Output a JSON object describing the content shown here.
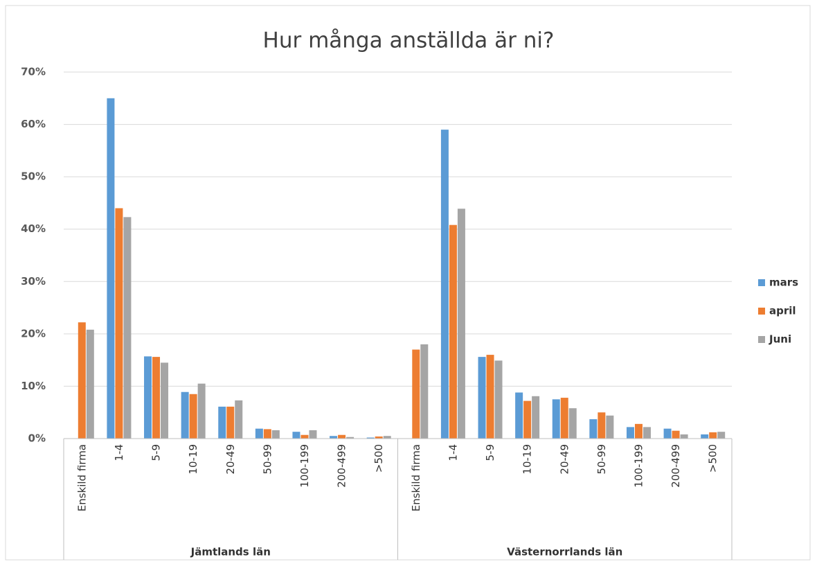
{
  "chart_data": {
    "type": "bar",
    "title": "Hur många anställda är ni?",
    "categories": [
      "Enskild firma",
      "1-4",
      "5-9",
      "10-19",
      "20-49",
      "50-99",
      "100-199",
      "200-499",
      ">500",
      "Enskild firma",
      "1-4",
      "5-9",
      "10-19",
      "20-49",
      "50-99",
      "100-199",
      "200-499",
      ">500"
    ],
    "groups": [
      "Jämtlands län",
      "Västernorrlands län"
    ],
    "series": [
      {
        "name": "mars",
        "color": "#5b9bd5",
        "values": [
          0,
          65,
          15.7,
          8.9,
          6.1,
          1.9,
          1.3,
          0.5,
          0.2,
          0,
          59,
          15.6,
          8.8,
          7.5,
          3.7,
          2.2,
          1.9,
          0.8
        ]
      },
      {
        "name": "april",
        "color": "#ed7d31",
        "values": [
          22.2,
          44,
          15.6,
          8.5,
          6.1,
          1.8,
          0.7,
          0.7,
          0.4,
          17,
          40.8,
          16,
          7.2,
          7.8,
          5,
          2.8,
          1.5,
          1.2
        ]
      },
      {
        "name": "Juni",
        "color": "#a5a5a5",
        "values": [
          20.8,
          42.3,
          14.5,
          10.5,
          7.3,
          1.6,
          1.6,
          0.3,
          0.5,
          18,
          43.9,
          14.9,
          8.1,
          5.8,
          4.4,
          2.2,
          0.8,
          1.3
        ]
      }
    ],
    "ylim": [
      0,
      70
    ],
    "yticks": [
      {
        "value": 0,
        "label": "0%"
      },
      {
        "value": 10,
        "label": "10%"
      },
      {
        "value": 20,
        "label": "20%"
      },
      {
        "value": 30,
        "label": "30%"
      },
      {
        "value": 40,
        "label": "40%"
      },
      {
        "value": 50,
        "label": "50%"
      },
      {
        "value": 60,
        "label": "60%"
      },
      {
        "value": 70,
        "label": "70%"
      }
    ],
    "grid": true,
    "legend": "right"
  }
}
